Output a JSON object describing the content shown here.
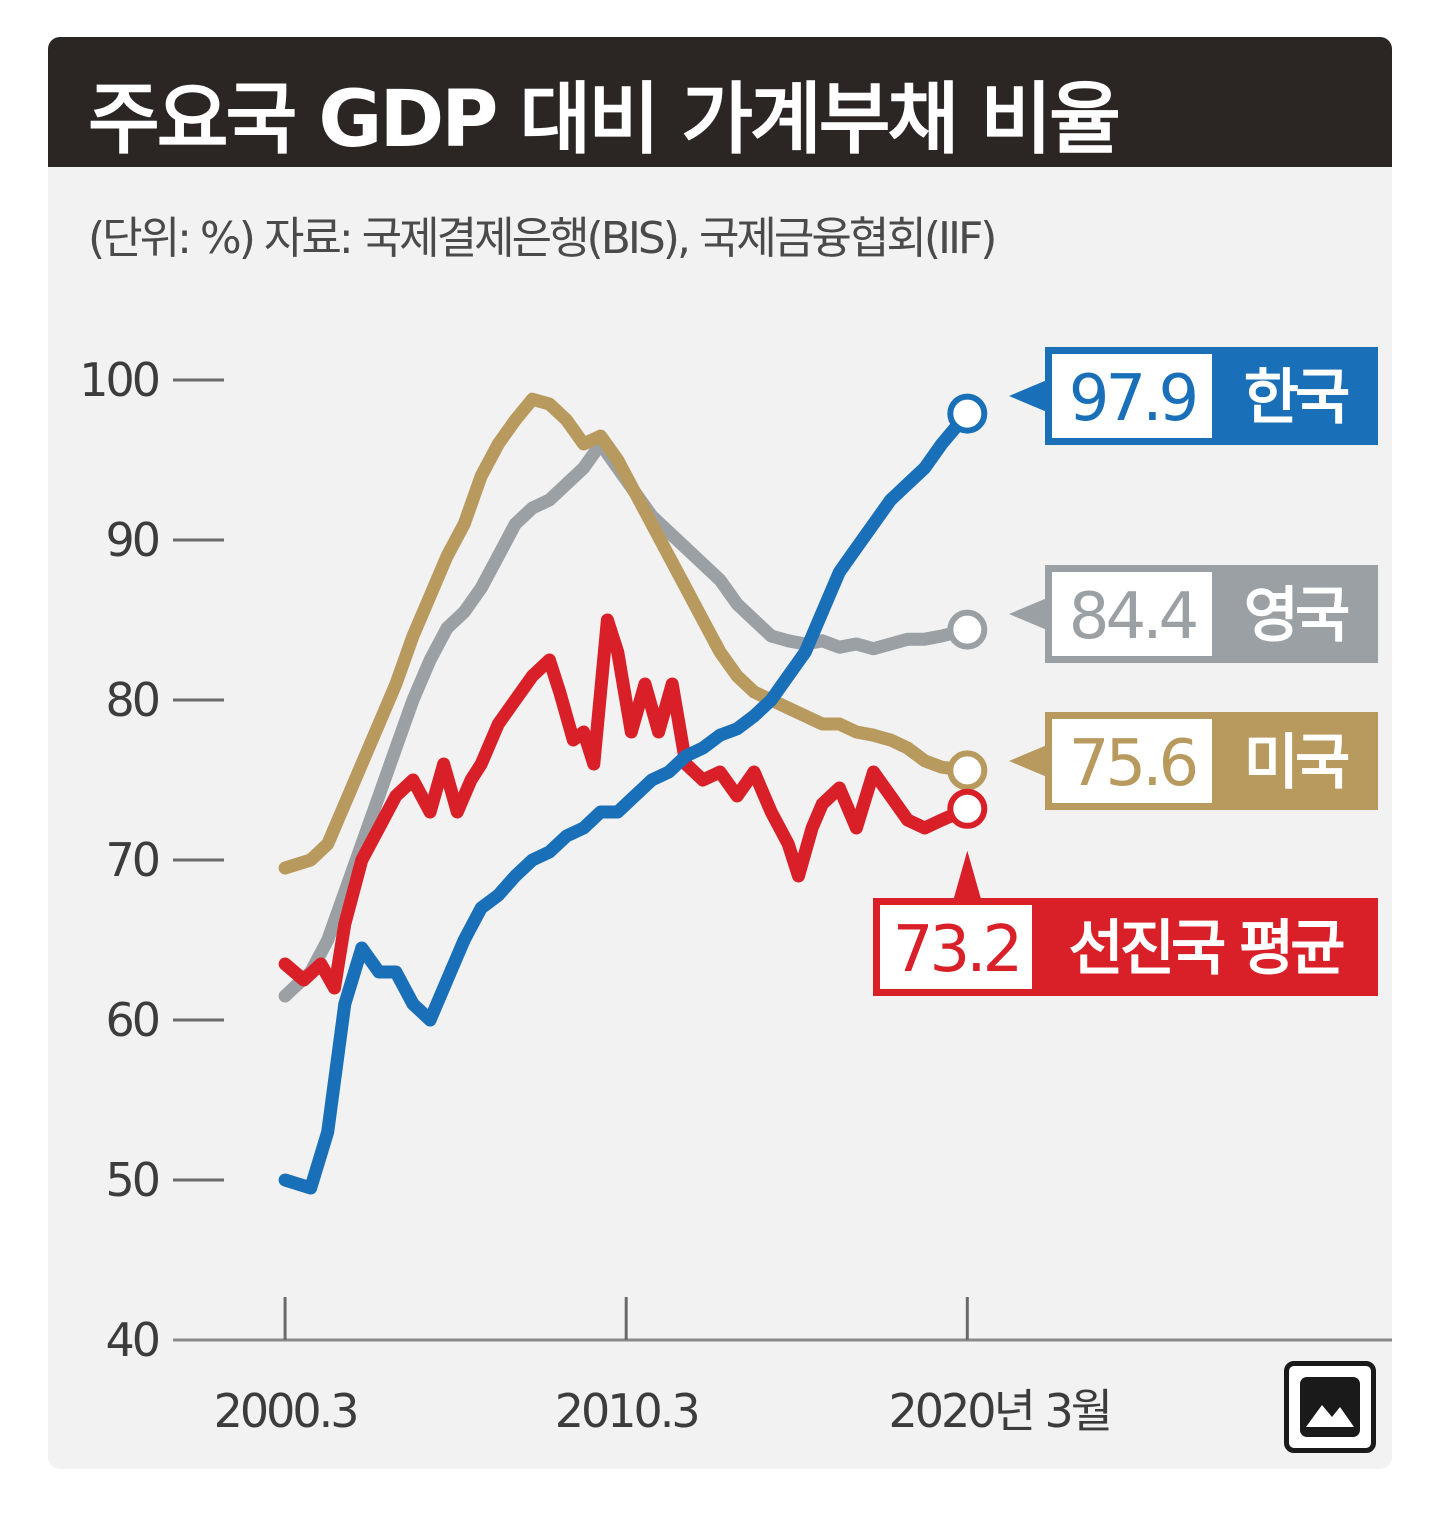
{
  "title": "주요국 GDP 대비 가계부채 비율",
  "subtitle": "(단위: %) 자료: 국제결제은행(BIS), 국제금융협회(IIF)",
  "image_button_icon": "image-icon",
  "chart_data": {
    "type": "line",
    "title": "주요국 GDP 대비 가계부채 비율",
    "ylim": [
      40,
      100
    ],
    "yticks": [
      "100",
      "90",
      "80",
      "70",
      "60",
      "50",
      "40"
    ],
    "x_tick_labels": [
      {
        "x": 2000.25,
        "label": "2000.3"
      },
      {
        "x": 2010.25,
        "label": "2010.3"
      },
      {
        "x": 2020.25,
        "label": "2020년 3월"
      }
    ],
    "xlim": [
      1993.3,
      2032.7
    ],
    "grid": false,
    "series": [
      {
        "name": "한국",
        "color": "#1a70b8",
        "end_value": "97.9",
        "end_label_text_color": "#1a70b8",
        "points": [
          [
            2000.25,
            50
          ],
          [
            2001,
            49.5
          ],
          [
            2001.5,
            53
          ],
          [
            2002,
            61
          ],
          [
            2002.5,
            64.5
          ],
          [
            2003,
            63
          ],
          [
            2003.5,
            63
          ],
          [
            2004,
            61
          ],
          [
            2004.5,
            60
          ],
          [
            2005,
            62.5
          ],
          [
            2005.5,
            65
          ],
          [
            2006,
            67
          ],
          [
            2006.5,
            67.8
          ],
          [
            2007,
            69
          ],
          [
            2007.5,
            70
          ],
          [
            2008,
            70.5
          ],
          [
            2008.5,
            71.5
          ],
          [
            2009,
            72
          ],
          [
            2009.5,
            73
          ],
          [
            2010,
            73
          ],
          [
            2010.5,
            74
          ],
          [
            2011,
            75
          ],
          [
            2011.5,
            75.5
          ],
          [
            2012,
            76.5
          ],
          [
            2012.5,
            77
          ],
          [
            2013,
            77.8
          ],
          [
            2013.5,
            78.2
          ],
          [
            2014,
            79
          ],
          [
            2014.5,
            80
          ],
          [
            2015,
            81.5
          ],
          [
            2015.5,
            83
          ],
          [
            2016,
            85.5
          ],
          [
            2016.5,
            88
          ],
          [
            2017,
            89.5
          ],
          [
            2017.5,
            91
          ],
          [
            2018,
            92.5
          ],
          [
            2018.5,
            93.5
          ],
          [
            2019,
            94.5
          ],
          [
            2019.5,
            96
          ],
          [
            2020.25,
            97.9
          ]
        ]
      },
      {
        "name": "영국",
        "color": "#9aa0a4",
        "end_value": "84.4",
        "end_label_text_color": "#9aa0a4",
        "points": [
          [
            2000.25,
            61.5
          ],
          [
            2001,
            63
          ],
          [
            2001.5,
            65
          ],
          [
            2002,
            68
          ],
          [
            2002.5,
            71
          ],
          [
            2003,
            74
          ],
          [
            2003.5,
            77
          ],
          [
            2004,
            80
          ],
          [
            2004.5,
            82.5
          ],
          [
            2005,
            84.5
          ],
          [
            2005.5,
            85.5
          ],
          [
            2006,
            87
          ],
          [
            2006.5,
            89
          ],
          [
            2007,
            91
          ],
          [
            2007.5,
            92
          ],
          [
            2008,
            92.5
          ],
          [
            2008.5,
            93.5
          ],
          [
            2009,
            94.5
          ],
          [
            2009.5,
            96
          ],
          [
            2010,
            94.5
          ],
          [
            2010.5,
            93
          ],
          [
            2011,
            91.5
          ],
          [
            2011.5,
            90.5
          ],
          [
            2012,
            89.5
          ],
          [
            2012.5,
            88.5
          ],
          [
            2013,
            87.5
          ],
          [
            2013.5,
            86
          ],
          [
            2014,
            85
          ],
          [
            2014.5,
            84
          ],
          [
            2015,
            83.7
          ],
          [
            2015.5,
            83.5
          ],
          [
            2016,
            83.7
          ],
          [
            2016.5,
            83.3
          ],
          [
            2017,
            83.5
          ],
          [
            2017.5,
            83.2
          ],
          [
            2018,
            83.5
          ],
          [
            2018.5,
            83.8
          ],
          [
            2019,
            83.8
          ],
          [
            2019.5,
            84
          ],
          [
            2020.25,
            84.4
          ]
        ]
      },
      {
        "name": "미국",
        "color": "#b89a5e",
        "end_value": "75.6",
        "end_label_text_color": "#b89a5e",
        "points": [
          [
            2000.25,
            69.5
          ],
          [
            2001,
            70
          ],
          [
            2001.5,
            71
          ],
          [
            2002,
            73.5
          ],
          [
            2002.5,
            76
          ],
          [
            2003,
            78.5
          ],
          [
            2003.5,
            81
          ],
          [
            2004,
            84
          ],
          [
            2004.5,
            86.5
          ],
          [
            2005,
            89
          ],
          [
            2005.5,
            91
          ],
          [
            2006,
            94
          ],
          [
            2006.5,
            96
          ],
          [
            2007,
            97.5
          ],
          [
            2007.5,
            98.8
          ],
          [
            2008,
            98.5
          ],
          [
            2008.5,
            97.5
          ],
          [
            2009,
            96
          ],
          [
            2009.5,
            96.5
          ],
          [
            2010,
            95
          ],
          [
            2010.5,
            93
          ],
          [
            2011,
            91
          ],
          [
            2011.5,
            89
          ],
          [
            2012,
            87
          ],
          [
            2012.5,
            85
          ],
          [
            2013,
            83
          ],
          [
            2013.5,
            81.5
          ],
          [
            2014,
            80.5
          ],
          [
            2014.5,
            80
          ],
          [
            2015,
            79.5
          ],
          [
            2015.5,
            79
          ],
          [
            2016,
            78.5
          ],
          [
            2016.5,
            78.5
          ],
          [
            2017,
            78
          ],
          [
            2017.5,
            77.8
          ],
          [
            2018,
            77.5
          ],
          [
            2018.5,
            77
          ],
          [
            2019,
            76.2
          ],
          [
            2019.5,
            75.8
          ],
          [
            2020.25,
            75.6
          ]
        ]
      },
      {
        "name": "선진국 평균",
        "color": "#d92028",
        "end_value": "73.2",
        "end_label_text_color": "#d92028",
        "points": [
          [
            2000.25,
            63.5
          ],
          [
            2000.8,
            62.5
          ],
          [
            2001.3,
            63.5
          ],
          [
            2001.7,
            62
          ],
          [
            2002,
            66
          ],
          [
            2002.5,
            70
          ],
          [
            2003,
            72
          ],
          [
            2003.5,
            74
          ],
          [
            2004,
            75
          ],
          [
            2004.5,
            73
          ],
          [
            2004.9,
            76
          ],
          [
            2005.3,
            73
          ],
          [
            2005.7,
            75
          ],
          [
            2006,
            76
          ],
          [
            2006.5,
            78.5
          ],
          [
            2007,
            80
          ],
          [
            2007.5,
            81.5
          ],
          [
            2008,
            82.5
          ],
          [
            2008.3,
            80.5
          ],
          [
            2008.7,
            77.5
          ],
          [
            2009,
            78
          ],
          [
            2009.3,
            76
          ],
          [
            2009.7,
            85
          ],
          [
            2010,
            83
          ],
          [
            2010.4,
            78
          ],
          [
            2010.8,
            81
          ],
          [
            2011.2,
            78
          ],
          [
            2011.6,
            81
          ],
          [
            2012,
            76
          ],
          [
            2012.5,
            75
          ],
          [
            2013,
            75.5
          ],
          [
            2013.5,
            74
          ],
          [
            2014,
            75.5
          ],
          [
            2014.5,
            73
          ],
          [
            2015,
            71
          ],
          [
            2015.3,
            69
          ],
          [
            2015.7,
            72
          ],
          [
            2016,
            73.5
          ],
          [
            2016.5,
            74.5
          ],
          [
            2017,
            72
          ],
          [
            2017.5,
            75.5
          ],
          [
            2018,
            74
          ],
          [
            2018.5,
            72.5
          ],
          [
            2019,
            72
          ],
          [
            2019.5,
            72.5
          ],
          [
            2020.25,
            73.2
          ]
        ]
      }
    ]
  }
}
